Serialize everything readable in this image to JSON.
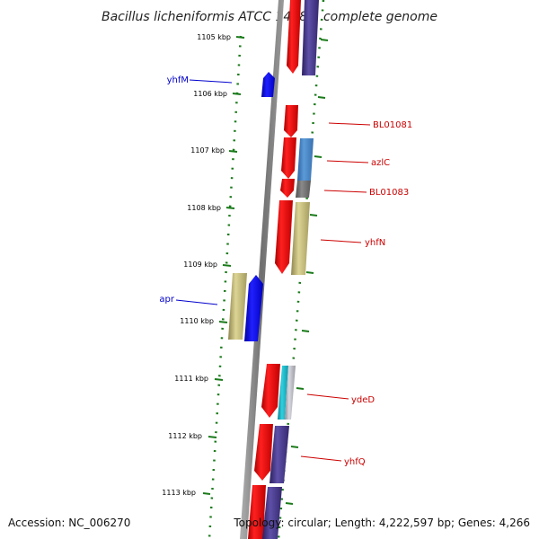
{
  "title": "Bacillus licheniformis ATCC 14580, complete genome",
  "footer": {
    "accession": "Accession: NC_006270",
    "topology": "Topology: circular; Length: 4,222,597 bp; Genes: 4,266"
  },
  "kbp_labels": [
    "1105 kbp",
    "1106 kbp",
    "1107 kbp",
    "1108 kbp",
    "1109 kbp",
    "1110 kbp",
    "1111 kbp",
    "1112 kbp",
    "1113 kbp"
  ],
  "gene_labels": [
    {
      "name": "yhfM",
      "strand": "reverse"
    },
    {
      "name": "BL01081",
      "strand": "forward"
    },
    {
      "name": "azlC",
      "strand": "forward"
    },
    {
      "name": "BL01083",
      "strand": "forward"
    },
    {
      "name": "yhfN",
      "strand": "forward"
    },
    {
      "name": "apr",
      "strand": "reverse"
    },
    {
      "name": "ydeD",
      "strand": "forward"
    },
    {
      "name": "yhfQ",
      "strand": "forward"
    }
  ],
  "colors": {
    "forward_cds": "#ff0000",
    "reverse_cds": "#0000ff",
    "cog_blue": "#4a86c8",
    "cog_gray": "#707070",
    "cog_khaki": "#c8be7a",
    "cog_purple": "#4a3c8c",
    "cog_cyan": "#20b8c8",
    "cog_silver": "#b0b0b8",
    "tick_green": "#1a7a1a",
    "backbone": "#808080"
  }
}
